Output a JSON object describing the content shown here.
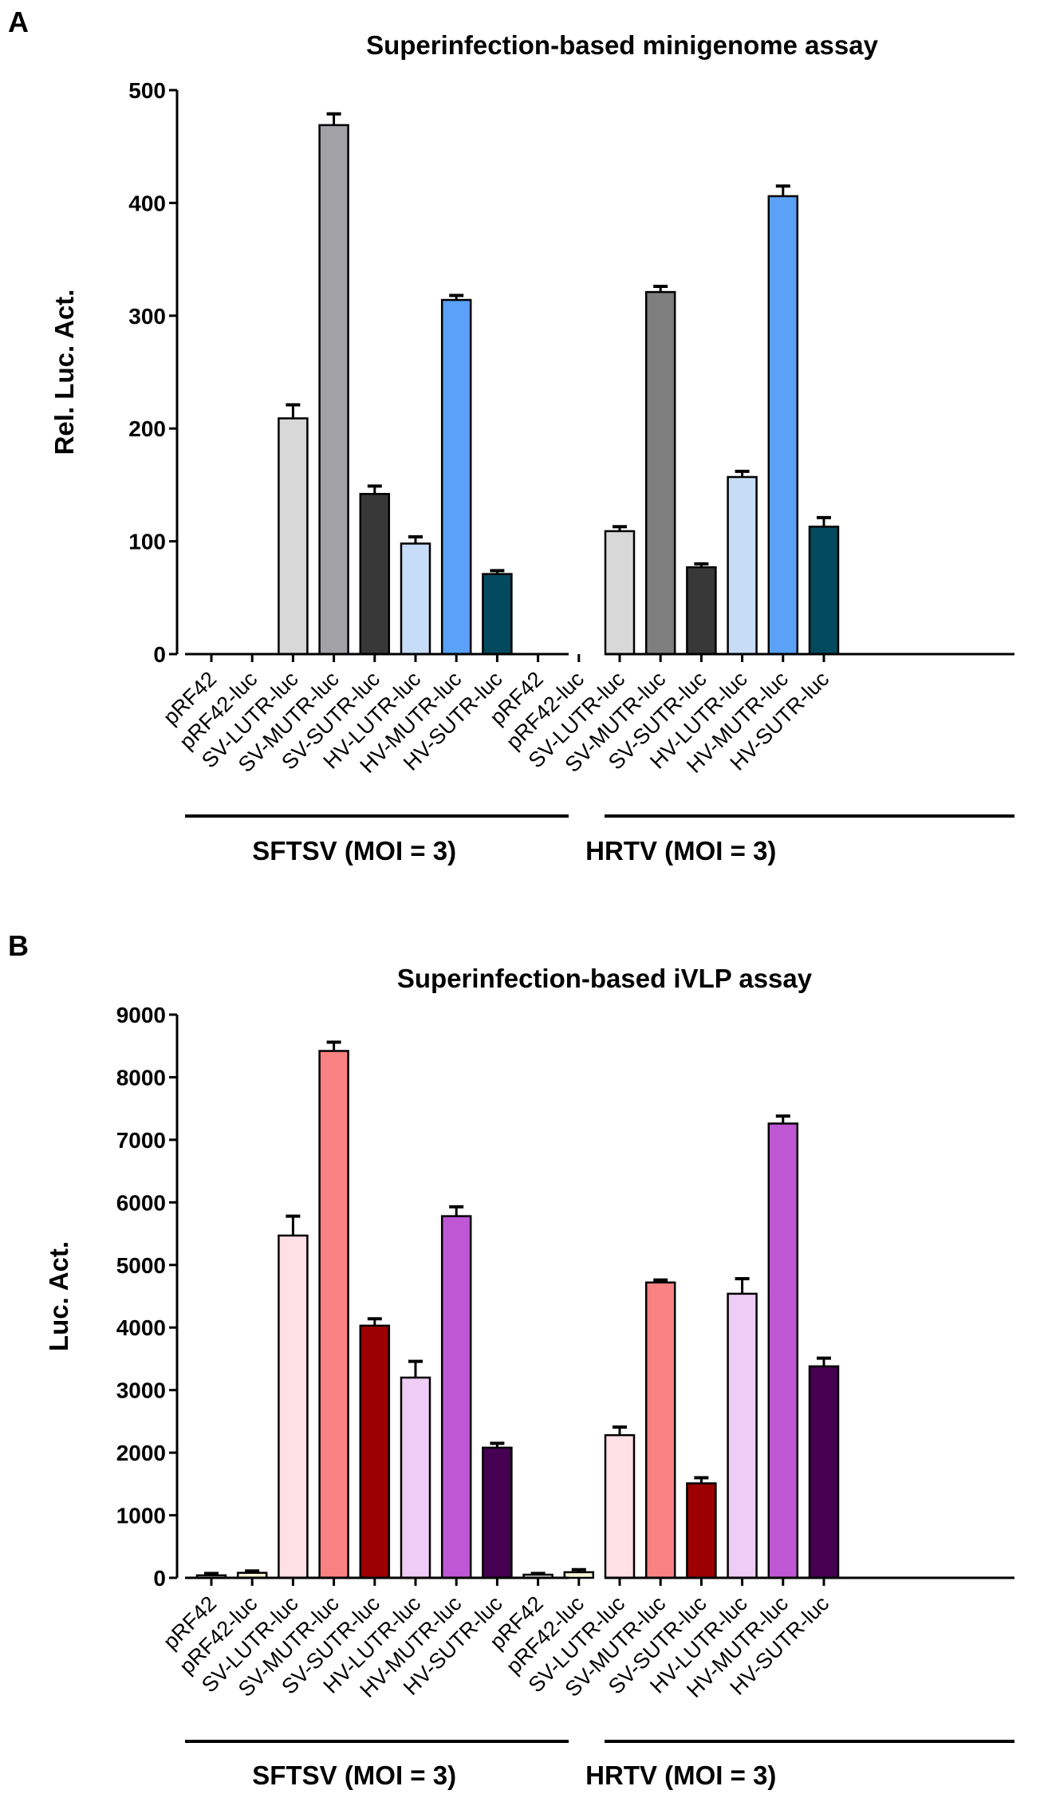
{
  "chart_data": [
    {
      "panel_label": "A",
      "type": "bar",
      "title": "Superinfection-based minigenome assay",
      "ylabel": "Rel. Luc. Act.",
      "xlabel": "",
      "ylim": [
        0,
        500
      ],
      "yticks": [
        0,
        100,
        200,
        300,
        400,
        500
      ],
      "grid": false,
      "categories": [
        "pRF42",
        "pRF42-luc",
        "SV-LUTR-luc",
        "SV-MUTR-luc",
        "SV-SUTR-luc",
        "HV-LUTR-luc",
        "HV-MUTR-luc",
        "HV-SUTR-luc",
        "pRF42",
        "pRF42-luc",
        "SV-LUTR-luc",
        "SV-MUTR-luc",
        "SV-SUTR-luc",
        "HV-LUTR-luc",
        "HV-MUTR-luc",
        "HV-SUTR-luc"
      ],
      "values": [
        0,
        0,
        209,
        469,
        142,
        98,
        314,
        71,
        0,
        0,
        109,
        321,
        77,
        157,
        406,
        113
      ],
      "errors": [
        0,
        0,
        12,
        10,
        7,
        6,
        4,
        3,
        0,
        0,
        4,
        5,
        3,
        5,
        9,
        8
      ],
      "colors": [
        "#ffffff",
        "#ffffff",
        "#d8d8d8",
        "#a1a1a6",
        "#383838",
        "#c7dcf7",
        "#5aa1f7",
        "#044a5e",
        "#ffffff",
        "#ffffff",
        "#d8d8d8",
        "#7e7e7e",
        "#383838",
        "#c7dcf7",
        "#5aa1f7",
        "#044a5e"
      ],
      "groups": [
        {
          "label": "SFTSV (MOI = 3)",
          "start": 0,
          "end": 7
        },
        {
          "label": "HRTV (MOI = 3)",
          "start": 8,
          "end": 15
        }
      ]
    },
    {
      "panel_label": "B",
      "type": "bar",
      "title": "Superinfection-based iVLP assay",
      "ylabel": "Luc. Act.",
      "xlabel": "",
      "ylim": [
        0,
        9000
      ],
      "yticks": [
        0,
        1000,
        2000,
        3000,
        4000,
        5000,
        6000,
        7000,
        8000,
        9000
      ],
      "grid": false,
      "categories": [
        "pRF42",
        "pRF42-luc",
        "SV-LUTR-luc",
        "SV-MUTR-luc",
        "SV-SUTR-luc",
        "HV-LUTR-luc",
        "HV-MUTR-luc",
        "HV-SUTR-luc",
        "pRF42",
        "pRF42-luc",
        "SV-LUTR-luc",
        "SV-MUTR-luc",
        "SV-SUTR-luc",
        "HV-LUTR-luc",
        "HV-MUTR-luc",
        "HV-SUTR-luc"
      ],
      "values": [
        40,
        80,
        5470,
        8420,
        4030,
        3200,
        5780,
        2080,
        50,
        90,
        2280,
        4720,
        1510,
        4540,
        7260,
        3380
      ],
      "errors": [
        30,
        30,
        310,
        140,
        110,
        260,
        150,
        70,
        20,
        40,
        130,
        40,
        90,
        240,
        120,
        130
      ],
      "colors": [
        "#ffffff",
        "#f7f7d7",
        "#ffe0e4",
        "#fb8282",
        "#9d0000",
        "#efccf5",
        "#bf57d5",
        "#450052",
        "#ffffff",
        "#f7f7d7",
        "#ffe0e4",
        "#fb8282",
        "#9d0000",
        "#efccf5",
        "#bf57d5",
        "#450052"
      ],
      "groups": [
        {
          "label": "SFTSV (MOI = 3)",
          "start": 0,
          "end": 7
        },
        {
          "label": "HRTV (MOI = 3)",
          "start": 8,
          "end": 15
        }
      ]
    }
  ]
}
